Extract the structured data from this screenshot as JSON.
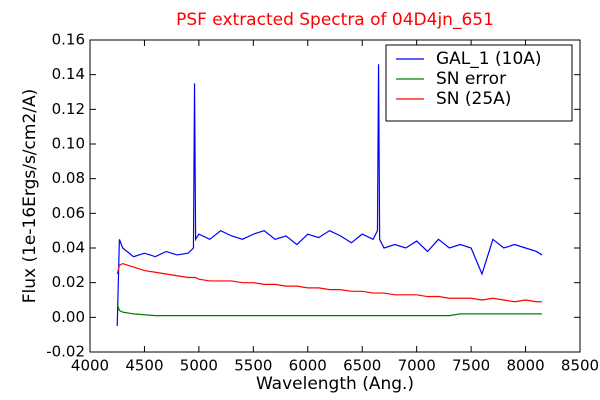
{
  "chart_data": {
    "type": "line",
    "title": "PSF extracted Spectra of 04D4jn_651",
    "xlabel": "Wavelength (Ang.)",
    "ylabel": "Flux (1e-16Ergs/s/cm2/A)",
    "x": [
      4250,
      4270,
      4300,
      4400,
      4500,
      4600,
      4700,
      4800,
      4900,
      4950,
      4960,
      4970,
      5000,
      5100,
      5200,
      5300,
      5400,
      5500,
      5600,
      5700,
      5800,
      5900,
      6000,
      6100,
      6200,
      6300,
      6400,
      6500,
      6600,
      6640,
      6650,
      6660,
      6700,
      6800,
      6900,
      7000,
      7100,
      7200,
      7300,
      7400,
      7500,
      7600,
      7700,
      7800,
      7900,
      8000,
      8100,
      8150
    ],
    "series": [
      {
        "name": "GAL_1 (10A)",
        "color": "#0000ff",
        "values": [
          -0.005,
          0.045,
          0.04,
          0.035,
          0.037,
          0.035,
          0.038,
          0.036,
          0.037,
          0.04,
          0.135,
          0.045,
          0.048,
          0.045,
          0.05,
          0.047,
          0.045,
          0.048,
          0.05,
          0.045,
          0.047,
          0.042,
          0.048,
          0.046,
          0.05,
          0.047,
          0.043,
          0.048,
          0.045,
          0.05,
          0.146,
          0.045,
          0.04,
          0.042,
          0.04,
          0.044,
          0.038,
          0.045,
          0.04,
          0.042,
          0.04,
          0.025,
          0.045,
          0.04,
          0.042,
          0.04,
          0.038,
          0.036
        ]
      },
      {
        "name": "SN error",
        "color": "#008000",
        "values": [
          0.008,
          0.004,
          0.003,
          0.002,
          0.0015,
          0.001,
          0.001,
          0.001,
          0.001,
          0.001,
          0.001,
          0.001,
          0.001,
          0.001,
          0.001,
          0.001,
          0.001,
          0.001,
          0.001,
          0.001,
          0.001,
          0.001,
          0.001,
          0.001,
          0.001,
          0.001,
          0.001,
          0.001,
          0.001,
          0.001,
          0.001,
          0.001,
          0.001,
          0.001,
          0.001,
          0.001,
          0.001,
          0.001,
          0.001,
          0.002,
          0.002,
          0.002,
          0.002,
          0.002,
          0.002,
          0.002,
          0.002,
          0.002
        ]
      },
      {
        "name": "SN (25A)",
        "color": "#ff0000",
        "values": [
          0.025,
          0.03,
          0.031,
          0.029,
          0.027,
          0.026,
          0.025,
          0.024,
          0.023,
          0.023,
          0.023,
          0.023,
          0.022,
          0.021,
          0.021,
          0.021,
          0.02,
          0.02,
          0.019,
          0.019,
          0.018,
          0.018,
          0.017,
          0.017,
          0.016,
          0.016,
          0.015,
          0.015,
          0.014,
          0.014,
          0.014,
          0.014,
          0.014,
          0.013,
          0.013,
          0.013,
          0.012,
          0.012,
          0.011,
          0.011,
          0.011,
          0.01,
          0.011,
          0.01,
          0.009,
          0.01,
          0.009,
          0.009
        ]
      }
    ],
    "xlim": [
      4000,
      8500
    ],
    "xticks": [
      4000,
      4500,
      5000,
      5500,
      6000,
      6500,
      7000,
      7500,
      8000,
      8500
    ],
    "ylim": [
      -0.02,
      0.16
    ],
    "yticks": [
      -0.02,
      0.02,
      {
        "value": 0,
        "label": "0.00"
      },
      0.04,
      0.06,
      0.08,
      {
        "value": 0.1,
        "label": "0.10"
      },
      0.12,
      0.14,
      0.16
    ],
    "legend": "upper right",
    "title_color": "#ff0000"
  }
}
